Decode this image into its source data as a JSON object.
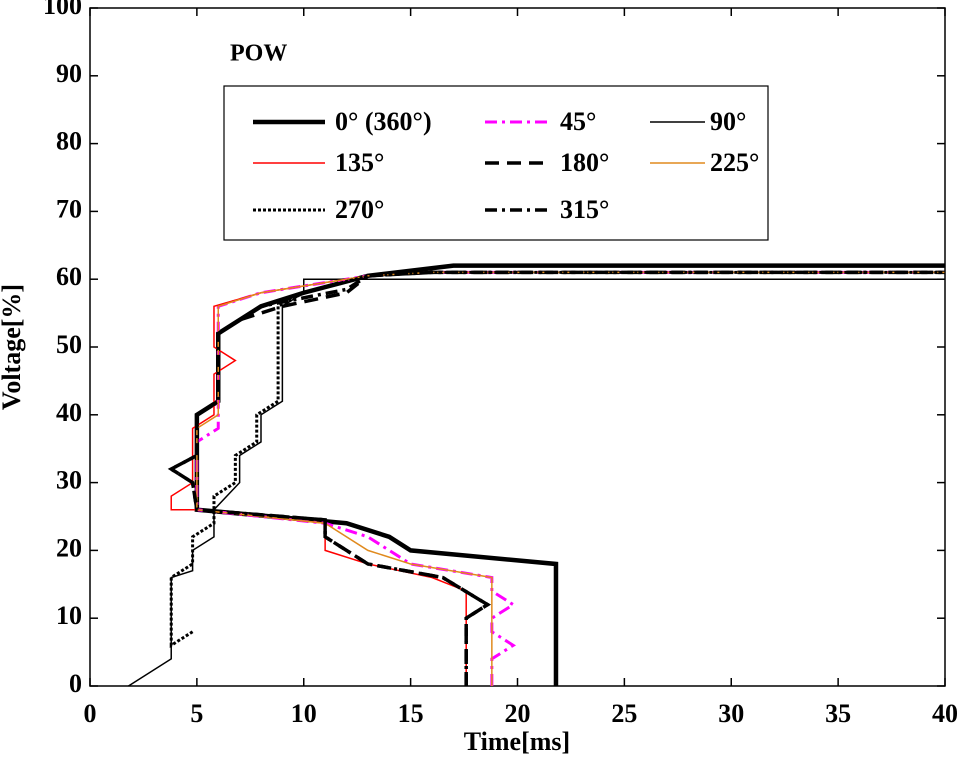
{
  "chart_data": {
    "type": "line",
    "annotation": "POW",
    "xlabel": "Time[ms]",
    "ylabel": "Voltage[%]",
    "xlim": [
      0,
      40
    ],
    "ylim": [
      0,
      100
    ],
    "xticks": [
      0,
      5,
      10,
      15,
      20,
      25,
      30,
      35,
      40
    ],
    "yticks": [
      0,
      10,
      20,
      30,
      40,
      50,
      60,
      70,
      80,
      90,
      100
    ],
    "series": [
      {
        "name": "0° (360°)",
        "color": "#000000",
        "line_style": "solid",
        "line_width": 4.5,
        "x": [
          21.8,
          21.8,
          15,
          14,
          12,
          5,
          5,
          6,
          6,
          8,
          10,
          13,
          17,
          40
        ],
        "values": [
          0,
          18,
          20,
          22,
          24,
          26,
          40,
          42,
          52,
          56,
          58,
          60.5,
          62,
          62
        ]
      },
      {
        "name": "45°",
        "color": "#ff00ff",
        "line_style": "dashdot",
        "line_width": 3,
        "x": [
          18.8,
          18.8,
          19.8,
          18.8,
          18.8,
          19.8,
          18.8,
          18.8,
          15,
          13,
          11,
          5,
          5,
          6,
          6,
          8,
          13,
          16,
          40
        ],
        "values": [
          0,
          4,
          6,
          8,
          10,
          12,
          14,
          16,
          18,
          22,
          24,
          26,
          36,
          38,
          56,
          58,
          60.5,
          61,
          61
        ]
      },
      {
        "name": "90°",
        "color": "#000000",
        "line_style": "solid",
        "line_width": 1.5,
        "x": [
          1.8,
          3.8,
          3.8,
          4.8,
          4.8,
          5.8,
          5.8,
          7,
          7,
          8,
          8,
          9,
          9,
          10,
          10,
          13,
          40
        ],
        "values": [
          0,
          4,
          16,
          17,
          20,
          22,
          26,
          30,
          34,
          36,
          40,
          42,
          56,
          58,
          60,
          60,
          60
        ]
      },
      {
        "name": "135°",
        "color": "#ff0000",
        "line_style": "solid",
        "line_width": 1.5,
        "x": [
          17.6,
          17.6,
          16,
          13,
          11,
          11,
          5,
          3.8,
          3.8,
          4.8,
          4.8,
          5.8,
          5.8,
          6.8,
          5.8,
          5.8,
          8,
          13,
          16,
          40
        ],
        "values": [
          0,
          14,
          16,
          18,
          20,
          24,
          26,
          26,
          28,
          30,
          38,
          40,
          46,
          48,
          50,
          56,
          58,
          60.5,
          61,
          61
        ]
      },
      {
        "name": "180°",
        "color": "#000000",
        "line_style": "dash",
        "line_width": 3.5,
        "x": [
          17.6,
          17.6,
          18.6,
          16.5,
          13,
          11,
          11,
          5,
          4.8,
          3.8,
          5,
          5,
          6,
          6,
          7,
          9,
          12,
          13,
          16,
          40
        ],
        "values": [
          0,
          10,
          12,
          16,
          18,
          22,
          24.5,
          26,
          30,
          32,
          34,
          40,
          42,
          52,
          54,
          56,
          58,
          60.5,
          61,
          61
        ]
      },
      {
        "name": "225°",
        "color": "#e08a1e",
        "line_style": "solid",
        "line_width": 1.5,
        "x": [
          18.8,
          18.8,
          15,
          13,
          11,
          5,
          5,
          6,
          6,
          8,
          13,
          16,
          40
        ],
        "values": [
          0,
          16,
          18,
          20,
          24,
          26,
          38,
          40,
          56,
          58,
          60.5,
          61,
          61
        ]
      },
      {
        "name": "270°",
        "color": "#000000",
        "line_style": "dot",
        "line_width": 3,
        "x": [
          4.8,
          3.8,
          3.8,
          4.8,
          4.8,
          5.8,
          5.8,
          6.8,
          6.8,
          7.8,
          7.8,
          8.8,
          8.8,
          10,
          13,
          16,
          40
        ],
        "values": [
          8,
          6,
          16,
          18,
          22,
          24,
          28,
          30,
          34,
          36,
          40,
          42,
          56,
          58,
          60.5,
          61,
          61
        ]
      },
      {
        "name": "315°",
        "color": "#000000",
        "line_style": "dashdot",
        "line_width": 3.5,
        "x": [
          17.6,
          17.6,
          18.6,
          16.5,
          13,
          11,
          11,
          5,
          4.8,
          3.8,
          5,
          5,
          6,
          6,
          8,
          12,
          13,
          16,
          40
        ],
        "values": [
          0,
          10,
          12,
          16,
          18,
          22,
          24.5,
          26,
          30,
          32,
          34,
          40,
          42,
          52,
          56,
          58.5,
          60.5,
          61,
          61
        ]
      }
    ]
  }
}
